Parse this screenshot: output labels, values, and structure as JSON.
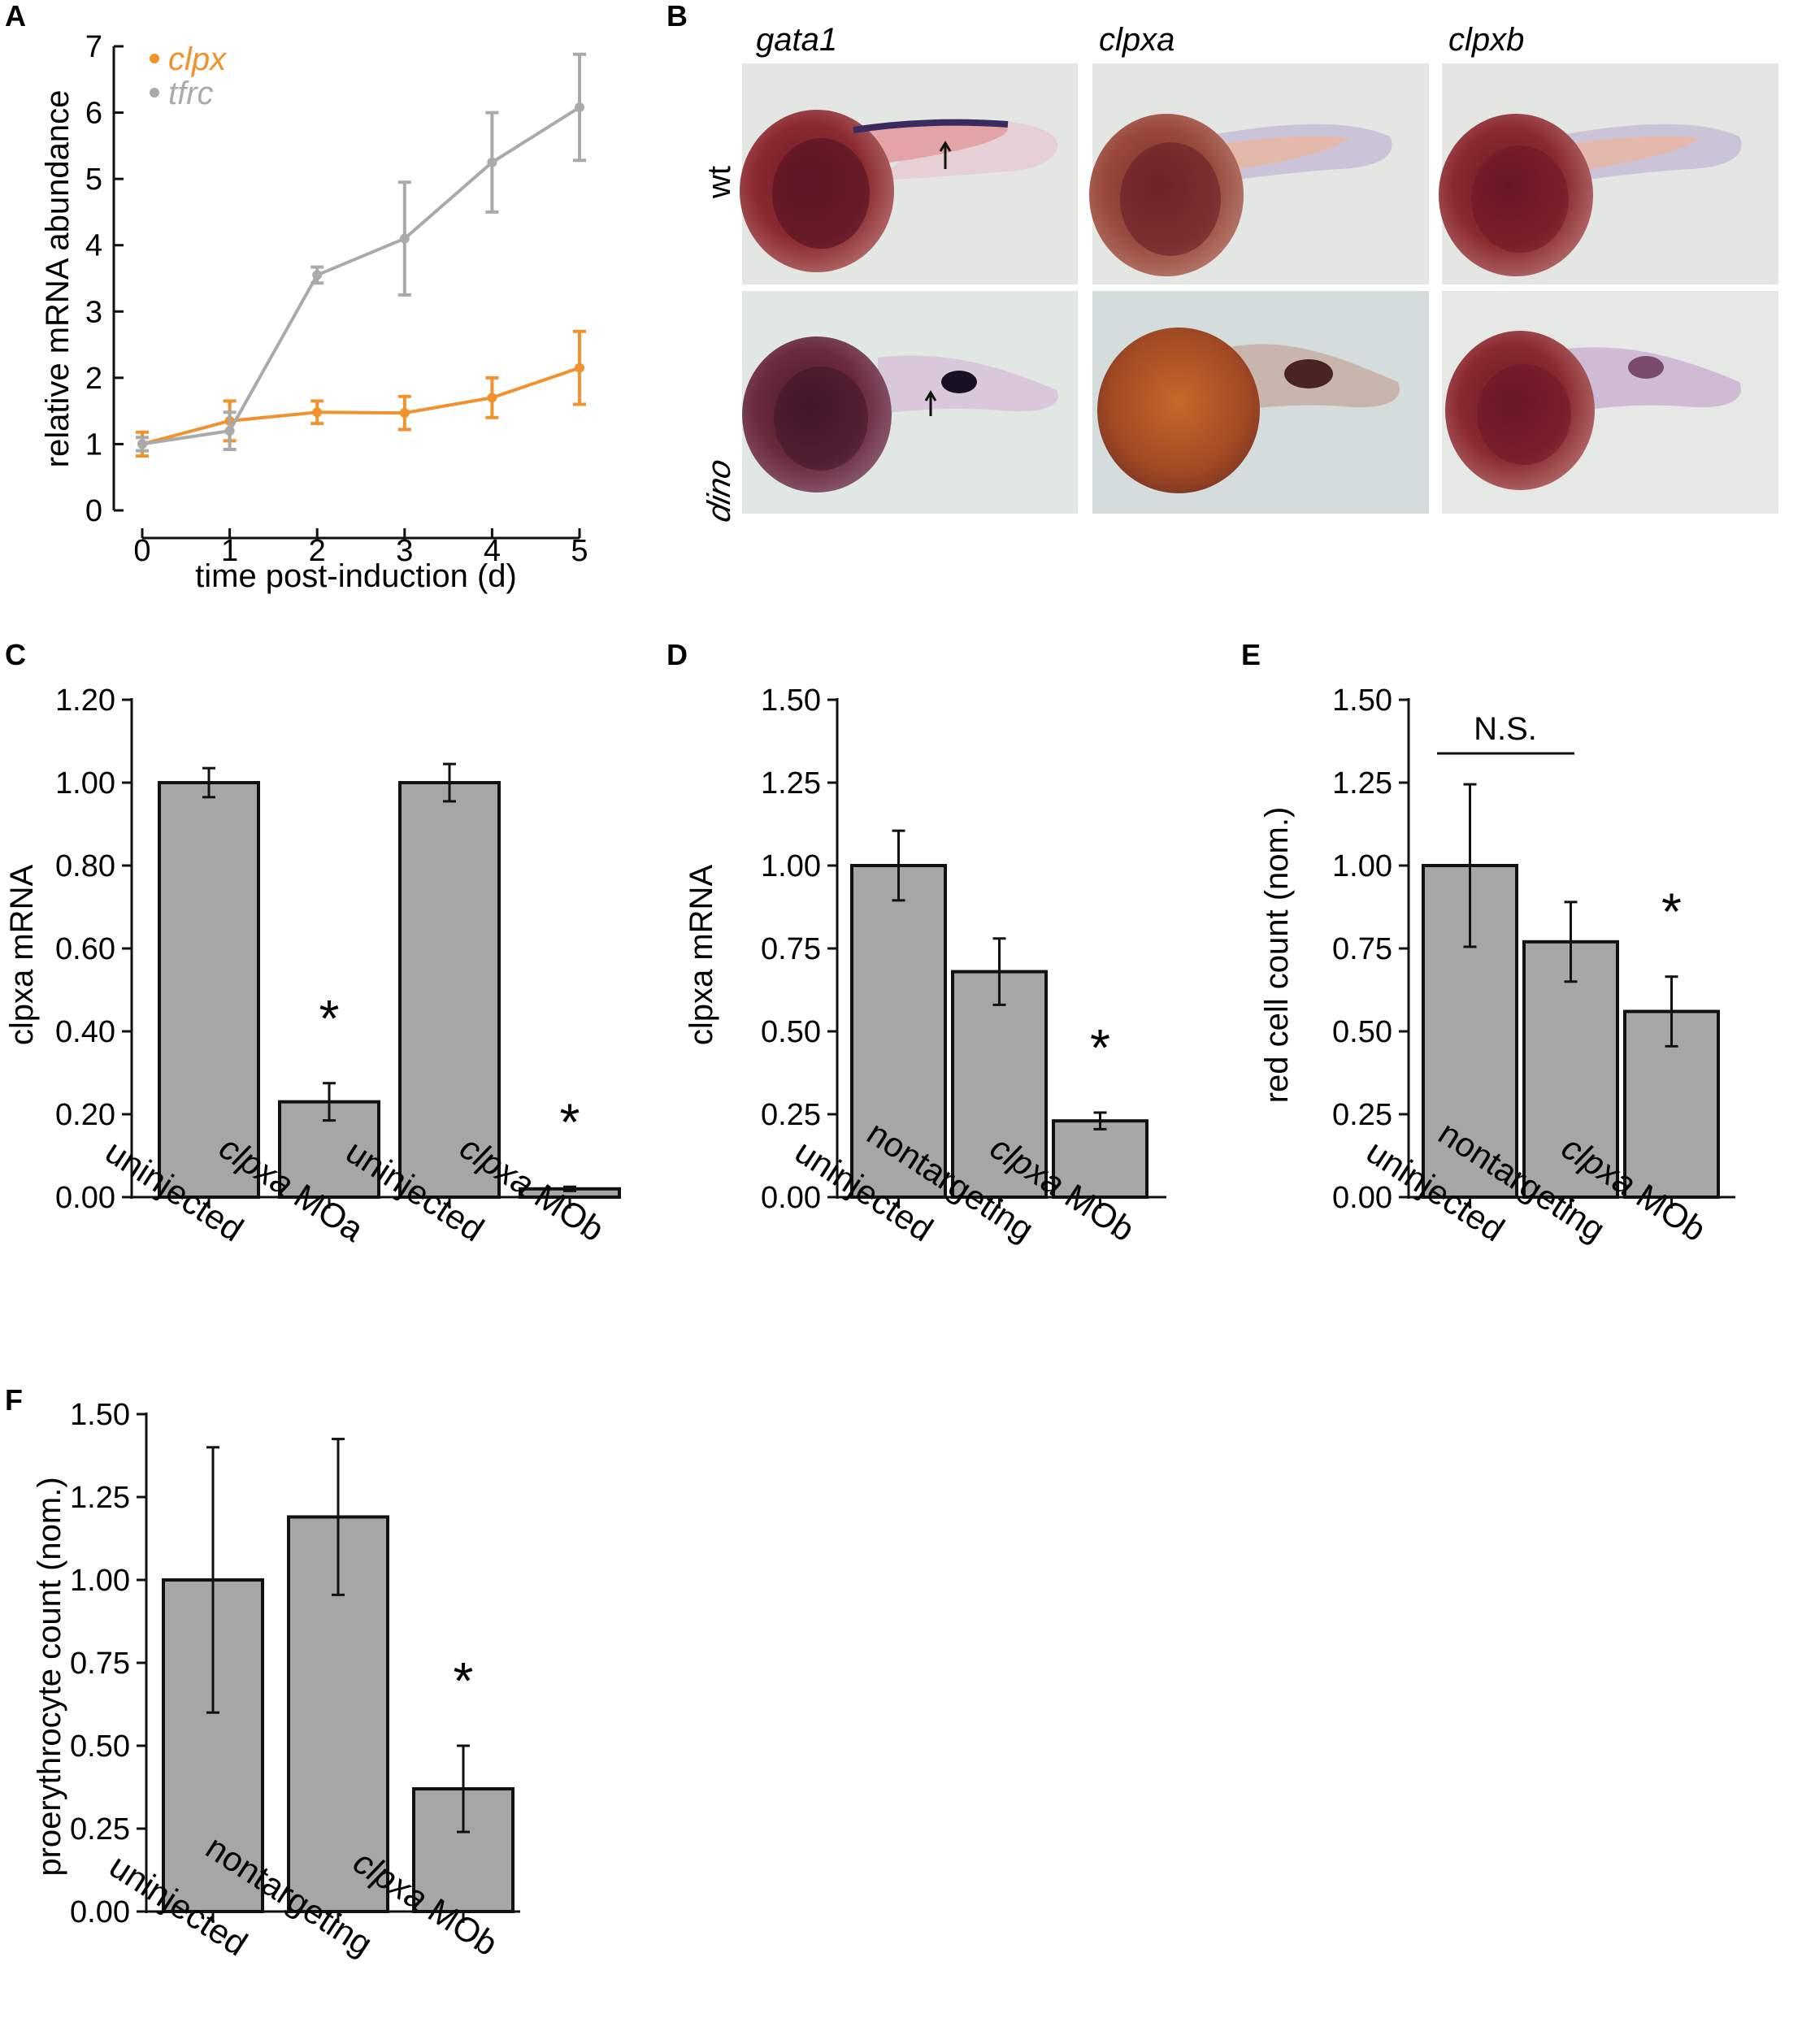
{
  "figure": {
    "panels": {
      "A": {
        "label": "A"
      },
      "B": {
        "label": "B",
        "columns": [
          "gata1",
          "clpxa",
          "clpxb"
        ],
        "rows": [
          "wt",
          "dino"
        ]
      },
      "C": {
        "label": "C"
      },
      "D": {
        "label": "D"
      },
      "E": {
        "label": "E"
      },
      "F": {
        "label": "F"
      }
    }
  },
  "colors": {
    "clpx": "#f0922d",
    "tfrc": "#aaaaaa",
    "bar": "#a6a6a6"
  },
  "chart_data": [
    {
      "id": "A",
      "type": "line",
      "xlabel": "time post-induction (d)",
      "ylabel": "relative mRNA abundance",
      "xlim": [
        0,
        5
      ],
      "ylim": [
        0,
        7
      ],
      "xticks": [
        "0",
        "1",
        "2",
        "3",
        "4",
        "5"
      ],
      "yticks": [
        "0",
        "1",
        "2",
        "3",
        "4",
        "5",
        "6",
        "7"
      ],
      "legend_position": "top-left",
      "series": [
        {
          "name": "clpx",
          "color": "#f0922d",
          "x": [
            0,
            1,
            2,
            3,
            4,
            5
          ],
          "y": [
            1.0,
            1.35,
            1.48,
            1.47,
            1.7,
            2.15
          ],
          "err": [
            0.18,
            0.3,
            0.17,
            0.25,
            0.3,
            0.55
          ]
        },
        {
          "name": "tfrc",
          "color": "#aaaaaa",
          "x": [
            0,
            1,
            2,
            3,
            4,
            5
          ],
          "y": [
            1.0,
            1.2,
            3.55,
            4.1,
            5.25,
            6.08
          ],
          "err": [
            0.1,
            0.28,
            0.12,
            0.85,
            0.75,
            0.8
          ]
        }
      ]
    },
    {
      "id": "C",
      "type": "bar",
      "ylabel": "clpxa mRNA",
      "categories": [
        "uninjected",
        "clpxa MOa",
        "uninjected",
        "clpxa MOb"
      ],
      "values": [
        1.0,
        0.23,
        1.0,
        0.02
      ],
      "errors": [
        0.035,
        0.045,
        0.045,
        0.005
      ],
      "significant": [
        false,
        true,
        false,
        true
      ],
      "significance_marker": "*",
      "ylim": [
        0,
        1.2
      ],
      "yticks": [
        "0.00",
        "0.20",
        "0.40",
        "0.60",
        "0.80",
        "1.00",
        "1.20"
      ]
    },
    {
      "id": "D",
      "type": "bar",
      "ylabel": "clpxa mRNA",
      "categories": [
        "uninjected",
        "nontargeting",
        "clpxa MOb"
      ],
      "values": [
        1.0,
        0.68,
        0.23
      ],
      "errors": [
        0.105,
        0.1,
        0.025
      ],
      "significant": [
        false,
        false,
        true
      ],
      "significance_marker": "*",
      "ylim": [
        0,
        1.5
      ],
      "yticks": [
        "0.00",
        "0.25",
        "0.50",
        "0.75",
        "1.00",
        "1.25",
        "1.50"
      ]
    },
    {
      "id": "E",
      "type": "bar",
      "ylabel": "red cell count (nom.)",
      "categories": [
        "uninjected",
        "nontargeting",
        "clpxa MOb"
      ],
      "values": [
        1.0,
        0.77,
        0.56
      ],
      "errors": [
        0.245,
        0.12,
        0.105
      ],
      "significant": [
        false,
        false,
        true
      ],
      "significance_marker": "*",
      "annotation": "N.S.",
      "ylim": [
        0,
        1.5
      ],
      "yticks": [
        "0.00",
        "0.25",
        "0.50",
        "0.75",
        "1.00",
        "1.25",
        "1.50"
      ]
    },
    {
      "id": "F",
      "type": "bar",
      "ylabel": "proerythrocyte count (nom.)",
      "categories": [
        "uninjected",
        "nontargeting",
        "clpxa MOb"
      ],
      "values": [
        1.0,
        1.19,
        0.37
      ],
      "errors": [
        0.4,
        0.235,
        0.13
      ],
      "significant": [
        false,
        false,
        true
      ],
      "significance_marker": "*",
      "ylim": [
        0,
        1.5
      ],
      "yticks": [
        "0.00",
        "0.25",
        "0.50",
        "0.75",
        "1.00",
        "1.25",
        "1.50"
      ]
    }
  ]
}
